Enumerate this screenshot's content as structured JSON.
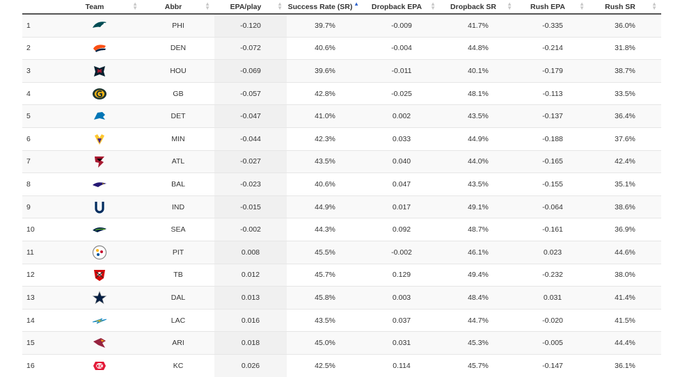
{
  "columns": [
    {
      "key": "rank",
      "label": ""
    },
    {
      "key": "team",
      "label": "Team"
    },
    {
      "key": "abbr",
      "label": "Abbr"
    },
    {
      "key": "epa",
      "label": "EPA/play"
    },
    {
      "key": "sr",
      "label": "Success Rate (SR)"
    },
    {
      "key": "db_epa",
      "label": "Dropback EPA"
    },
    {
      "key": "db_sr",
      "label": "Dropback SR"
    },
    {
      "key": "rush_epa",
      "label": "Rush EPA"
    },
    {
      "key": "rush_sr",
      "label": "Rush SR"
    }
  ],
  "sort": {
    "column": "epa",
    "direction": "ascending"
  },
  "rows": [
    {
      "rank": "1",
      "logo_icon": "eagles-logo-icon",
      "color": "#004C54",
      "abbr": "PHI",
      "epa": "-0.120",
      "sr": "39.7%",
      "db_epa": "-0.009",
      "db_sr": "41.7%",
      "rush_epa": "-0.335",
      "rush_sr": "36.0%"
    },
    {
      "rank": "2",
      "logo_icon": "broncos-logo-icon",
      "color": "#FB4F14",
      "abbr": "DEN",
      "epa": "-0.072",
      "sr": "40.6%",
      "db_epa": "-0.004",
      "db_sr": "44.8%",
      "rush_epa": "-0.214",
      "rush_sr": "31.8%"
    },
    {
      "rank": "3",
      "logo_icon": "texans-logo-icon",
      "color": "#03202F",
      "abbr": "HOU",
      "epa": "-0.069",
      "sr": "39.6%",
      "db_epa": "-0.011",
      "db_sr": "40.1%",
      "rush_epa": "-0.179",
      "rush_sr": "38.7%"
    },
    {
      "rank": "4",
      "logo_icon": "packers-logo-icon",
      "color": "#203731",
      "abbr": "GB",
      "epa": "-0.057",
      "sr": "42.8%",
      "db_epa": "-0.025",
      "db_sr": "48.1%",
      "rush_epa": "-0.113",
      "rush_sr": "33.5%"
    },
    {
      "rank": "5",
      "logo_icon": "lions-logo-icon",
      "color": "#0076B6",
      "abbr": "DET",
      "epa": "-0.047",
      "sr": "41.0%",
      "db_epa": "0.002",
      "db_sr": "43.5%",
      "rush_epa": "-0.137",
      "rush_sr": "36.4%"
    },
    {
      "rank": "6",
      "logo_icon": "vikings-logo-icon",
      "color": "#4F2683",
      "abbr": "MIN",
      "epa": "-0.044",
      "sr": "42.3%",
      "db_epa": "0.033",
      "db_sr": "44.9%",
      "rush_epa": "-0.188",
      "rush_sr": "37.6%"
    },
    {
      "rank": "7",
      "logo_icon": "falcons-logo-icon",
      "color": "#A71930",
      "abbr": "ATL",
      "epa": "-0.027",
      "sr": "43.5%",
      "db_epa": "0.040",
      "db_sr": "44.0%",
      "rush_epa": "-0.165",
      "rush_sr": "42.4%"
    },
    {
      "rank": "8",
      "logo_icon": "ravens-logo-icon",
      "color": "#241773",
      "abbr": "BAL",
      "epa": "-0.023",
      "sr": "40.6%",
      "db_epa": "0.047",
      "db_sr": "43.5%",
      "rush_epa": "-0.155",
      "rush_sr": "35.1%"
    },
    {
      "rank": "9",
      "logo_icon": "colts-logo-icon",
      "color": "#002C5F",
      "abbr": "IND",
      "epa": "-0.015",
      "sr": "44.9%",
      "db_epa": "0.017",
      "db_sr": "49.1%",
      "rush_epa": "-0.064",
      "rush_sr": "38.6%"
    },
    {
      "rank": "10",
      "logo_icon": "seahawks-logo-icon",
      "color": "#002244",
      "abbr": "SEA",
      "epa": "-0.002",
      "sr": "44.3%",
      "db_epa": "0.092",
      "db_sr": "48.7%",
      "rush_epa": "-0.161",
      "rush_sr": "36.9%"
    },
    {
      "rank": "11",
      "logo_icon": "steelers-logo-icon",
      "color": "#FFB612",
      "abbr": "PIT",
      "epa": "0.008",
      "sr": "45.5%",
      "db_epa": "-0.002",
      "db_sr": "46.1%",
      "rush_epa": "0.023",
      "rush_sr": "44.6%"
    },
    {
      "rank": "12",
      "logo_icon": "buccaneers-logo-icon",
      "color": "#D50A0A",
      "abbr": "TB",
      "epa": "0.012",
      "sr": "45.7%",
      "db_epa": "0.129",
      "db_sr": "49.4%",
      "rush_epa": "-0.232",
      "rush_sr": "38.0%"
    },
    {
      "rank": "13",
      "logo_icon": "cowboys-logo-icon",
      "color": "#041E42",
      "abbr": "DAL",
      "epa": "0.013",
      "sr": "45.8%",
      "db_epa": "0.003",
      "db_sr": "48.4%",
      "rush_epa": "0.031",
      "rush_sr": "41.4%"
    },
    {
      "rank": "14",
      "logo_icon": "chargers-logo-icon",
      "color": "#0080C6",
      "abbr": "LAC",
      "epa": "0.016",
      "sr": "43.5%",
      "db_epa": "0.037",
      "db_sr": "44.7%",
      "rush_epa": "-0.020",
      "rush_sr": "41.5%"
    },
    {
      "rank": "15",
      "logo_icon": "cardinals-logo-icon",
      "color": "#97233F",
      "abbr": "ARI",
      "epa": "0.018",
      "sr": "45.0%",
      "db_epa": "0.031",
      "db_sr": "45.3%",
      "rush_epa": "-0.005",
      "rush_sr": "44.4%"
    },
    {
      "rank": "16",
      "logo_icon": "chiefs-logo-icon",
      "color": "#E31837",
      "abbr": "KC",
      "epa": "0.026",
      "sr": "42.5%",
      "db_epa": "0.114",
      "db_sr": "45.7%",
      "rush_epa": "-0.147",
      "rush_sr": "36.1%"
    }
  ]
}
